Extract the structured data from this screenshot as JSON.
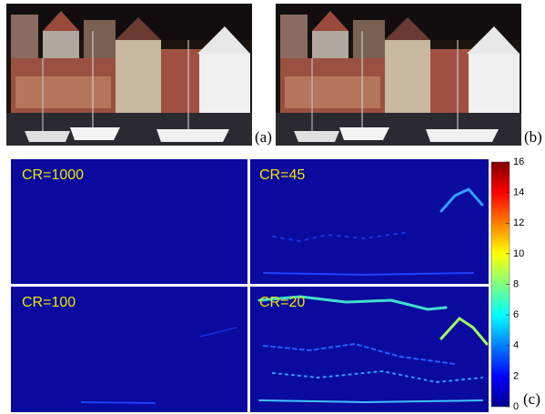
{
  "figure": {
    "photo_labels": [
      "(a)",
      "(b)"
    ],
    "maps": [
      {
        "label": "CR=1000"
      },
      {
        "label": "CR=45"
      },
      {
        "label": "CR=100"
      },
      {
        "label": "CR=20"
      }
    ],
    "colorbar": {
      "range": [
        0,
        16
      ],
      "ticks": [
        0,
        2,
        4,
        6,
        8,
        10,
        12,
        14,
        16
      ]
    },
    "maps_label": "(c)"
  }
}
